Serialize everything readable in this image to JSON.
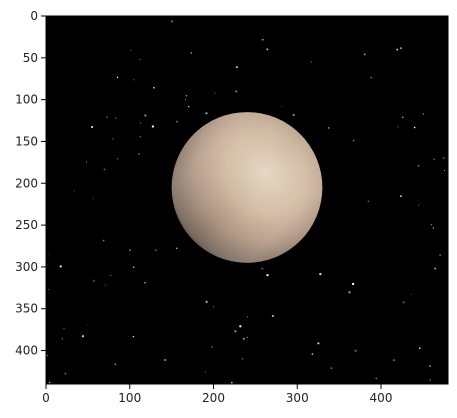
{
  "figure": {
    "image": {
      "width_units": 480,
      "height_units": 440,
      "background": "#000000",
      "description_icon": "planet-icon",
      "planet": {
        "center": [
          240,
          205
        ],
        "radius": 90,
        "palette": [
          "#f3e4d0",
          "#d9c2a9",
          "#b39a86",
          "#7f6f64",
          "#262220"
        ]
      }
    },
    "axes": {
      "x_ticks": [
        "0",
        "100",
        "200",
        "300",
        "400"
      ],
      "y_ticks": [
        "0",
        "50",
        "100",
        "150",
        "200",
        "250",
        "300",
        "350",
        "400"
      ],
      "x_tick_values": [
        0,
        100,
        200,
        300,
        400
      ],
      "y_tick_values": [
        0,
        50,
        100,
        150,
        200,
        250,
        300,
        350,
        400
      ],
      "xlim": [
        0,
        480
      ],
      "ylim": [
        440,
        0
      ]
    }
  }
}
